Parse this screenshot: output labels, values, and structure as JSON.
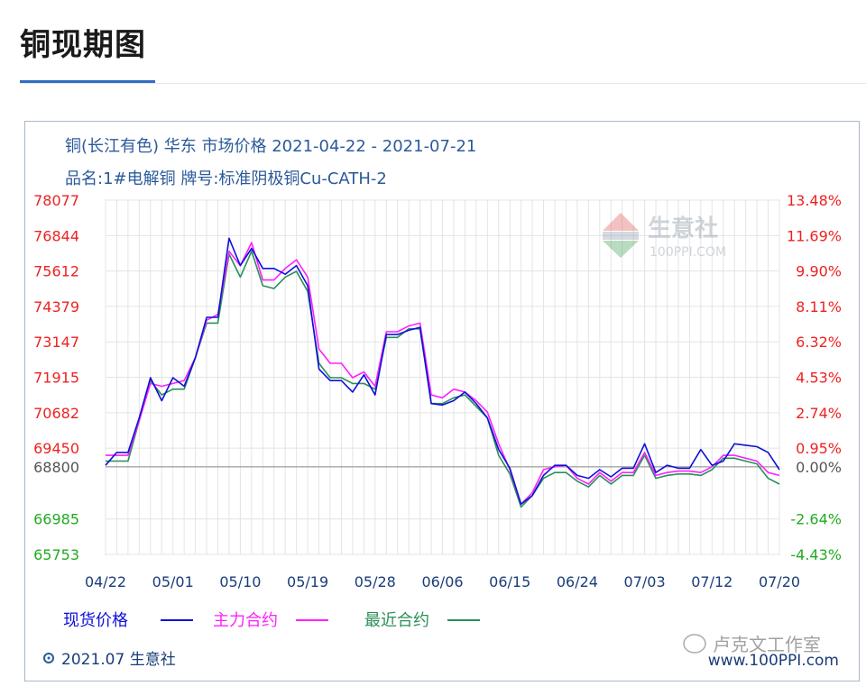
{
  "page": {
    "title": "铜现期图"
  },
  "header": {
    "line1": "铜(长江有色) 华东 市场价格 2021-04-22 - 2021-07-21",
    "line2": "品名:1#电解铜 牌号:标准阴极铜Cu-CATH-2"
  },
  "footer": {
    "date_label": "2021.07 生意社",
    "website": "www.100PPI.com"
  },
  "watermark": {
    "brand": "生意社",
    "site": "100PPI.COM",
    "wechat": "卢克文工作室"
  },
  "colors": {
    "spot": "#1010d8",
    "main": "#ff20ff",
    "recent": "#2a8f5a",
    "up": "#ee2222",
    "down": "#22aa22",
    "base": "#555555"
  },
  "chart_data": {
    "type": "line",
    "x": [
      "04/22",
      "04/23",
      "04/26",
      "04/27",
      "04/28",
      "04/29",
      "04/30",
      "05/06",
      "05/07",
      "05/10",
      "05/11",
      "05/12",
      "05/13",
      "05/14",
      "05/17",
      "05/18",
      "05/19",
      "05/20",
      "05/21",
      "05/24",
      "05/25",
      "05/26",
      "05/27",
      "05/28",
      "05/31",
      "06/01",
      "06/02",
      "06/03",
      "06/04",
      "06/07",
      "06/08",
      "06/09",
      "06/10",
      "06/11",
      "06/15",
      "06/16",
      "06/17",
      "06/18",
      "06/21",
      "06/22",
      "06/23",
      "06/24",
      "06/25",
      "06/28",
      "06/29",
      "06/30",
      "07/01",
      "07/02",
      "07/05",
      "07/06",
      "07/07",
      "07/08",
      "07/09",
      "07/12",
      "07/13",
      "07/14",
      "07/15",
      "07/16",
      "07/19",
      "07/20",
      "07/21"
    ],
    "series": [
      {
        "name": "现货价格",
        "values": [
          68850,
          69300,
          69300,
          70500,
          71900,
          71100,
          71900,
          71600,
          72600,
          74000,
          74000,
          76750,
          75800,
          76400,
          75700,
          75700,
          75500,
          75800,
          75100,
          72200,
          71800,
          71800,
          71400,
          72000,
          71300,
          73400,
          73400,
          73550,
          73650,
          71000,
          70950,
          71100,
          71400,
          71000,
          70500,
          69400,
          68750,
          67500,
          67800,
          68500,
          68850,
          68850,
          68500,
          68400,
          68700,
          68450,
          68750,
          68750,
          69600,
          68600,
          68850,
          68750,
          68750,
          69400,
          68850,
          69000,
          69600,
          69550,
          69500,
          69300,
          68700
        ]
      },
      {
        "name": "主力合约",
        "values": [
          69200,
          69200,
          69200,
          70400,
          71700,
          71600,
          71700,
          71800,
          72600,
          73900,
          74100,
          76300,
          75800,
          76600,
          75300,
          75300,
          75700,
          76000,
          75400,
          72900,
          72400,
          72400,
          71900,
          72100,
          71600,
          73500,
          73500,
          73700,
          73800,
          71300,
          71200,
          71500,
          71400,
          71100,
          70700,
          69600,
          68700,
          67500,
          67900,
          68700,
          68800,
          68850,
          68400,
          68200,
          68600,
          68300,
          68600,
          68600,
          69300,
          68500,
          68600,
          68650,
          68650,
          68600,
          68800,
          69200,
          69200,
          69100,
          69000,
          68600,
          68500
        ]
      },
      {
        "name": "最近合约",
        "values": [
          69000,
          69000,
          69000,
          70400,
          71800,
          71300,
          71500,
          71500,
          72600,
          73800,
          73800,
          76200,
          75400,
          76300,
          75100,
          75000,
          75400,
          75600,
          74900,
          72400,
          71900,
          71900,
          71700,
          71700,
          71500,
          73300,
          73300,
          73600,
          73600,
          71000,
          71000,
          71200,
          71300,
          70900,
          70500,
          69200,
          68550,
          67400,
          67800,
          68400,
          68600,
          68600,
          68300,
          68100,
          68500,
          68200,
          68500,
          68500,
          69200,
          68400,
          68500,
          68550,
          68550,
          68500,
          68700,
          69100,
          69100,
          69000,
          68900,
          68400,
          68200
        ]
      }
    ],
    "baseline": 68800,
    "ylim": [
      65753,
      78077
    ],
    "y_ticks_left": [
      "78077",
      "76844",
      "75612",
      "74379",
      "73147",
      "71915",
      "70682",
      "69450",
      "68800",
      "66985",
      "65753"
    ],
    "y_ticks_right": [
      "13.48%",
      "11.69%",
      "9.90%",
      "8.11%",
      "6.32%",
      "4.53%",
      "2.74%",
      "0.95%",
      "0.00%",
      "-2.64%",
      "-4.43%"
    ],
    "x_tick_labels": [
      "04/22",
      "05/01",
      "05/10",
      "05/19",
      "05/28",
      "06/06",
      "06/15",
      "06/24",
      "07/03",
      "07/12",
      "07/20"
    ],
    "grid": true
  }
}
